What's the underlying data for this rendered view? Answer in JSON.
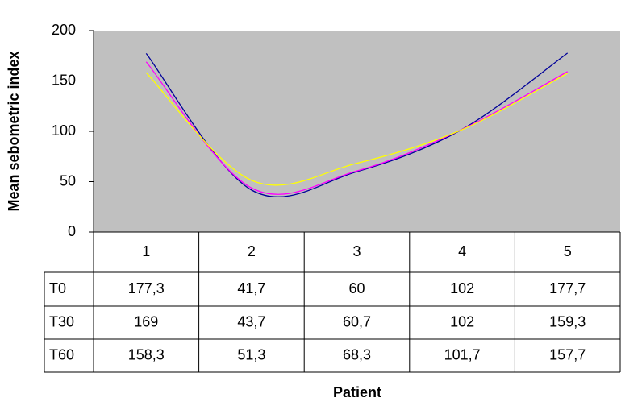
{
  "chart_data": {
    "type": "line",
    "ylabel": "Mean sebometric index",
    "xlabel": "Patient",
    "categories": [
      "1",
      "2",
      "3",
      "4",
      "5"
    ],
    "series": [
      {
        "name": "T0",
        "color": "#000099",
        "values": [
          177.3,
          41.7,
          60,
          102,
          177.7
        ],
        "value_labels": [
          "177,3",
          "41,7",
          "60",
          "102",
          "177,7"
        ]
      },
      {
        "name": "T30",
        "color": "#ff00ff",
        "values": [
          169,
          43.7,
          60.7,
          102,
          159.3
        ],
        "value_labels": [
          "169",
          "43,7",
          "60,7",
          "102",
          "159,3"
        ]
      },
      {
        "name": "T60",
        "color": "#ffff00",
        "values": [
          158.3,
          51.3,
          68.3,
          101.7,
          157.7
        ],
        "value_labels": [
          "158,3",
          "51,3",
          "68,3",
          "101,7",
          "157,7"
        ]
      }
    ],
    "ylim": [
      0,
      200
    ],
    "yticks": [
      0,
      50,
      100,
      150,
      200
    ],
    "plot_background": "#c0c0c0",
    "data_table": true
  }
}
